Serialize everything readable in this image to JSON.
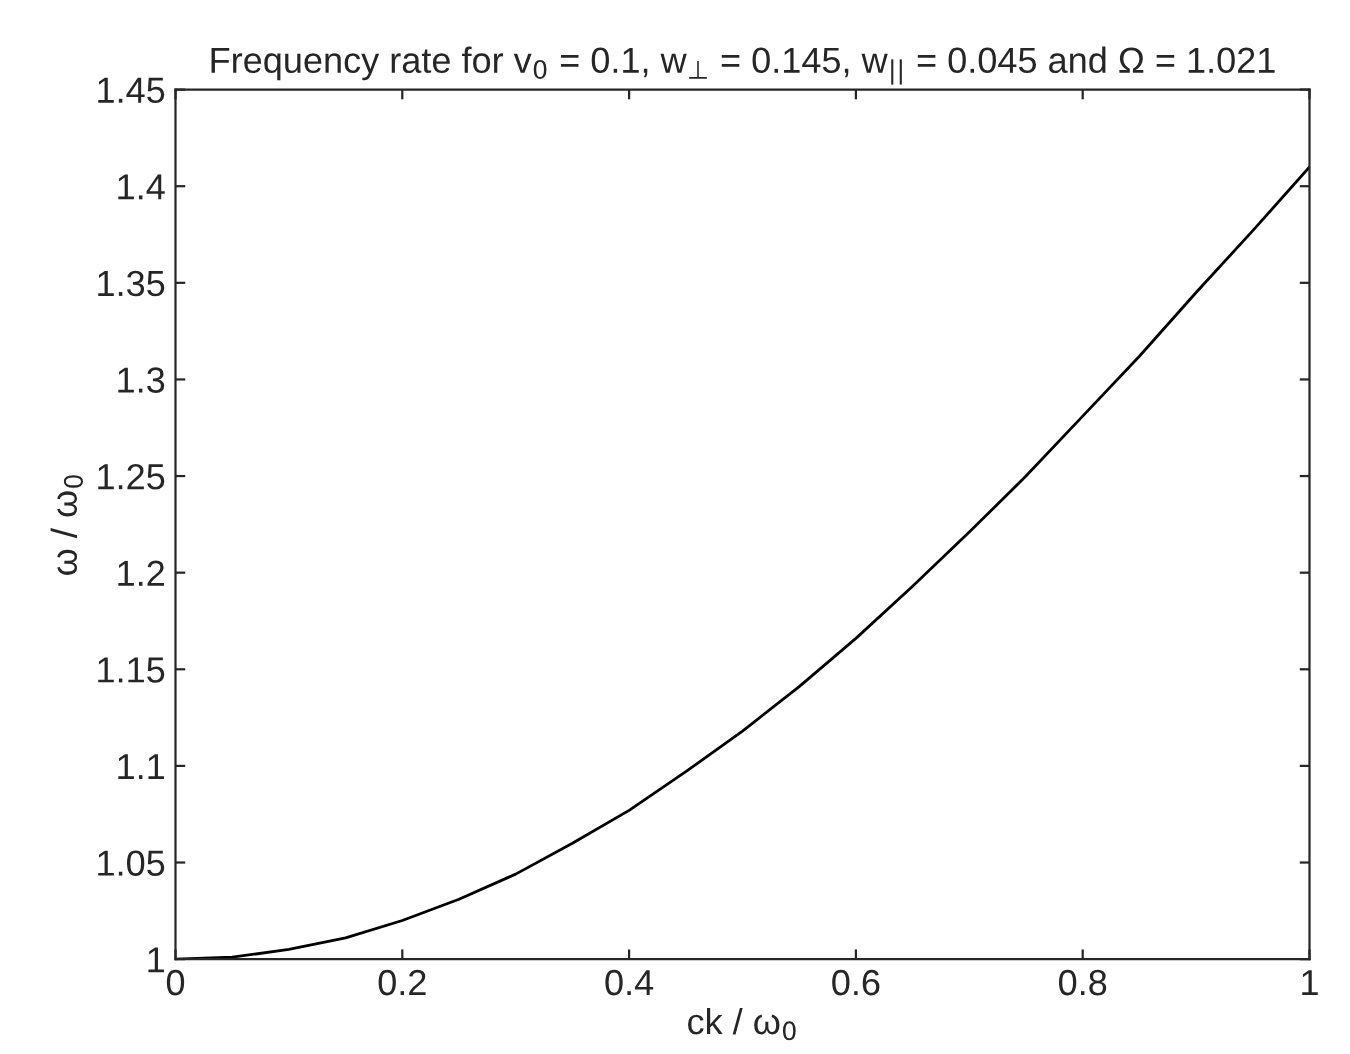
{
  "chart_data": {
    "type": "line",
    "title": "Frequency rate for v$_{0}$ = 0.1, w$_{⊥}$ = 0.145, w$_{||}$ = 0.045 and Ω = 1.021",
    "xlabel": "ck / ω$_{0}$",
    "ylabel": "ω / ω$_{0}$",
    "x": [
      0,
      0.05,
      0.1,
      0.15,
      0.2,
      0.25,
      0.3,
      0.35,
      0.4,
      0.45,
      0.5,
      0.55,
      0.6,
      0.65,
      0.7,
      0.75,
      0.8,
      0.85,
      0.9,
      0.95,
      1
    ],
    "series": [
      {
        "color": "#000000",
        "values": [
          1.0,
          1.001,
          1.005,
          1.011,
          1.02,
          1.031,
          1.044,
          1.06,
          1.077,
          1.097,
          1.118,
          1.141,
          1.166,
          1.193,
          1.221,
          1.25,
          1.281,
          1.312,
          1.345,
          1.377,
          1.41
        ]
      }
    ],
    "xlim": [
      0,
      1
    ],
    "ylim": [
      1,
      1.45
    ],
    "xticks": [
      0,
      0.2,
      0.4,
      0.6,
      0.8,
      1
    ],
    "yticks": [
      1,
      1.05,
      1.1,
      1.15,
      1.2,
      1.25,
      1.3,
      1.35,
      1.4,
      1.45
    ],
    "grid": false,
    "legend": false
  }
}
